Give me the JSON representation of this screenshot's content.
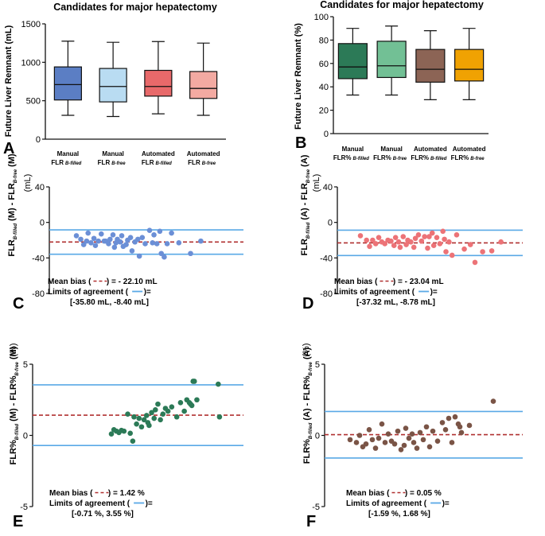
{
  "chart_data": [
    {
      "panel": "A",
      "type": "boxplot",
      "title": "Candidates for major hepatectomy",
      "ylabel": "Future Liver Remnant (mL)",
      "ylim": [
        0,
        1500
      ],
      "yticks": [
        0,
        500,
        1000,
        1500
      ],
      "categories": [
        {
          "main": "Manual",
          "line2": "FLR",
          "sub": "B-filled"
        },
        {
          "main": "Manual",
          "line2": "FLR",
          "sub": "B-free"
        },
        {
          "main": "Automated",
          "line2": "FLR",
          "sub": "B-filled"
        },
        {
          "main": "Automated",
          "line2": "FLR",
          "sub": "B-free"
        }
      ],
      "boxes": [
        {
          "min": 310,
          "q1": 510,
          "median": 710,
          "q3": 940,
          "max": 1275,
          "color": "#5b7ec4"
        },
        {
          "min": 295,
          "q1": 485,
          "median": 685,
          "q3": 920,
          "max": 1260,
          "color": "#b9dcf2"
        },
        {
          "min": 330,
          "q1": 560,
          "median": 685,
          "q3": 895,
          "max": 1270,
          "color": "#e8696a"
        },
        {
          "min": 310,
          "q1": 530,
          "median": 660,
          "q3": 880,
          "max": 1250,
          "color": "#f3aaa2"
        }
      ]
    },
    {
      "panel": "B",
      "type": "boxplot",
      "title": "Candidates for major hepatectomy",
      "ylabel": "Future Liver Remnant (%)",
      "ylim": [
        0,
        100
      ],
      "yticks": [
        0,
        20,
        40,
        60,
        80,
        100
      ],
      "categories": [
        {
          "main": "Manual",
          "line2": "FLR%",
          "sub": "B-filled"
        },
        {
          "main": "Manual",
          "line2": "FLR%",
          "sub": "B-free"
        },
        {
          "main": "Automated",
          "line2": "FLR%",
          "sub": "B-filled"
        },
        {
          "main": "Automated",
          "line2": "FLR%",
          "sub": "B-free"
        }
      ],
      "boxes": [
        {
          "min": 33,
          "q1": 47,
          "median": 57,
          "q3": 77,
          "max": 90,
          "color": "#2c7a57"
        },
        {
          "min": 33,
          "q1": 48,
          "median": 58,
          "q3": 79,
          "max": 92,
          "color": "#72c095"
        },
        {
          "min": 29,
          "q1": 44,
          "median": 55,
          "q3": 72,
          "max": 88,
          "color": "#8c6455"
        },
        {
          "min": 29,
          "q1": 45,
          "median": 55,
          "q3": 72,
          "max": 90,
          "color": "#f0a202"
        }
      ]
    },
    {
      "panel": "C",
      "type": "scatter",
      "ylabel_prefix": "FLR",
      "ylabel_sub1": "B-filled",
      "ylabel_mid": " (M) - FLR",
      "ylabel_sub2": "B-free",
      "ylabel_suffix": " (M)",
      "unit": "(mL)",
      "ylim": [
        -80,
        40
      ],
      "yticks": [
        40,
        0,
        -40,
        -80
      ],
      "mean_bias": -22.1,
      "loa": [
        -35.8,
        -8.4
      ],
      "point_color": "#6b8fd6",
      "points": [
        [
          0.0,
          -15
        ],
        [
          0.03,
          -19
        ],
        [
          0.05,
          -25
        ],
        [
          0.07,
          -21
        ],
        [
          0.08,
          -12
        ],
        [
          0.1,
          -23
        ],
        [
          0.12,
          -18
        ],
        [
          0.13,
          -26
        ],
        [
          0.15,
          -21
        ],
        [
          0.17,
          -13
        ],
        [
          0.19,
          -21
        ],
        [
          0.2,
          -21
        ],
        [
          0.22,
          -24
        ],
        [
          0.23,
          -19
        ],
        [
          0.25,
          -14
        ],
        [
          0.26,
          -28
        ],
        [
          0.27,
          -23
        ],
        [
          0.28,
          -19
        ],
        [
          0.3,
          -22
        ],
        [
          0.31,
          -15
        ],
        [
          0.32,
          -27
        ],
        [
          0.34,
          -25
        ],
        [
          0.35,
          -20
        ],
        [
          0.37,
          -17
        ],
        [
          0.38,
          -32
        ],
        [
          0.4,
          -22
        ],
        [
          0.42,
          -19
        ],
        [
          0.43,
          -38
        ],
        [
          0.45,
          -17
        ],
        [
          0.47,
          -24
        ],
        [
          0.5,
          -9
        ],
        [
          0.52,
          -23
        ],
        [
          0.53,
          -14
        ],
        [
          0.55,
          -24
        ],
        [
          0.57,
          -10
        ],
        [
          0.58,
          -35
        ],
        [
          0.6,
          -39
        ],
        [
          0.62,
          -24
        ],
        [
          0.65,
          -12
        ],
        [
          0.7,
          -23
        ],
        [
          0.78,
          -35
        ],
        [
          0.85,
          -21
        ]
      ],
      "legend_mean_pre": "Mean bias (",
      "legend_mean_post": ") = - 22.10 mL",
      "legend_loa_pre": "Limits of agreement (",
      "legend_loa_post": ")=",
      "legend_range": "[-35.80 mL, -8.40 mL]"
    },
    {
      "panel": "D",
      "type": "scatter",
      "ylabel_prefix": "FLR",
      "ylabel_sub1": "B-filled",
      "ylabel_mid": " (A) - FLR",
      "ylabel_sub2": "B-free",
      "ylabel_suffix": " (A)",
      "unit": "(mL)",
      "ylim": [
        -80,
        40
      ],
      "yticks": [
        40,
        0,
        -40,
        -80
      ],
      "mean_bias": -23.04,
      "loa": [
        -37.32,
        -8.78
      ],
      "point_color": "#ec7377",
      "points": [
        [
          0.0,
          -15
        ],
        [
          0.04,
          -20
        ],
        [
          0.06,
          -27
        ],
        [
          0.08,
          -20
        ],
        [
          0.1,
          -24
        ],
        [
          0.12,
          -17
        ],
        [
          0.14,
          -22
        ],
        [
          0.16,
          -24
        ],
        [
          0.18,
          -20
        ],
        [
          0.2,
          -21
        ],
        [
          0.22,
          -26
        ],
        [
          0.23,
          -17
        ],
        [
          0.25,
          -22
        ],
        [
          0.26,
          -28
        ],
        [
          0.28,
          -16
        ],
        [
          0.3,
          -25
        ],
        [
          0.31,
          -20
        ],
        [
          0.33,
          -22
        ],
        [
          0.35,
          -28
        ],
        [
          0.36,
          -18
        ],
        [
          0.38,
          -14
        ],
        [
          0.4,
          -21
        ],
        [
          0.42,
          -16
        ],
        [
          0.44,
          -29
        ],
        [
          0.45,
          -16
        ],
        [
          0.47,
          -12
        ],
        [
          0.48,
          -26
        ],
        [
          0.5,
          -17
        ],
        [
          0.52,
          -24
        ],
        [
          0.54,
          -10
        ],
        [
          0.55,
          -19
        ],
        [
          0.56,
          -33
        ],
        [
          0.58,
          -22
        ],
        [
          0.6,
          -37
        ],
        [
          0.63,
          -14
        ],
        [
          0.68,
          -30
        ],
        [
          0.72,
          -25
        ],
        [
          0.75,
          -45
        ],
        [
          0.8,
          -33
        ],
        [
          0.86,
          -32
        ],
        [
          0.92,
          -22
        ]
      ],
      "legend_mean_pre": "Mean bias (",
      "legend_mean_post": ") = - 23.04 mL",
      "legend_loa_pre": "Limits of agreement (",
      "legend_loa_post": ")=",
      "legend_range": "[-37.32 mL, -8.78 mL]"
    },
    {
      "panel": "E",
      "type": "scatter",
      "ylabel_prefix": "FLR%",
      "ylabel_sub1": "B-filled",
      "ylabel_mid": " (M) - FLR%",
      "ylabel_sub2": "B-free",
      "ylabel_suffix": " (M)",
      "unit": "(%)",
      "ylim": [
        -5,
        5
      ],
      "yticks": [
        5,
        0,
        -5
      ],
      "mean_bias": 1.42,
      "loa": [
        -0.71,
        3.55
      ],
      "point_color": "#2c7a57",
      "points": [
        [
          0.0,
          0.1
        ],
        [
          0.02,
          0.4
        ],
        [
          0.04,
          0.3
        ],
        [
          0.06,
          0.2
        ],
        [
          0.08,
          0.35
        ],
        [
          0.1,
          0.3
        ],
        [
          0.13,
          1.5
        ],
        [
          0.15,
          0.15
        ],
        [
          0.17,
          -0.4
        ],
        [
          0.18,
          1.3
        ],
        [
          0.2,
          0.8
        ],
        [
          0.22,
          1.2
        ],
        [
          0.24,
          0.6
        ],
        [
          0.26,
          1.1
        ],
        [
          0.28,
          1.4
        ],
        [
          0.29,
          0.9
        ],
        [
          0.3,
          0.7
        ],
        [
          0.32,
          1.6
        ],
        [
          0.34,
          1.2
        ],
        [
          0.35,
          1.8
        ],
        [
          0.37,
          2.2
        ],
        [
          0.39,
          1.1
        ],
        [
          0.41,
          1.5
        ],
        [
          0.43,
          1.9
        ],
        [
          0.45,
          1.7
        ],
        [
          0.48,
          2.0
        ],
        [
          0.52,
          1.3
        ],
        [
          0.55,
          2.3
        ],
        [
          0.58,
          1.7
        ],
        [
          0.6,
          2.5
        ],
        [
          0.62,
          2.3
        ],
        [
          0.63,
          2.2
        ],
        [
          0.64,
          2.1
        ],
        [
          0.65,
          3.8
        ],
        [
          0.66,
          3.8
        ],
        [
          0.68,
          2.5
        ],
        [
          0.85,
          3.6
        ],
        [
          0.86,
          1.3
        ]
      ],
      "legend_mean_pre": "Mean bias (",
      "legend_mean_post": ") = 1.42 %",
      "legend_loa_pre": "Limits of agreement (",
      "legend_loa_post": ")=",
      "legend_range": "[-0.71 %, 3.55 %]"
    },
    {
      "panel": "F",
      "type": "scatter",
      "ylabel_prefix": "FLR%",
      "ylabel_sub1": "B-filled",
      "ylabel_mid": " (A) - FLR%",
      "ylabel_sub2": "B-free",
      "ylabel_suffix": " (A)",
      "unit": "(%)",
      "ylim": [
        -5,
        5
      ],
      "yticks": [
        5,
        0,
        -5
      ],
      "mean_bias": 0.05,
      "loa": [
        -1.59,
        1.68
      ],
      "point_color": "#7a5446",
      "points": [
        [
          0.0,
          -0.3
        ],
        [
          0.04,
          -0.5
        ],
        [
          0.06,
          0.0
        ],
        [
          0.08,
          -0.8
        ],
        [
          0.1,
          -0.6
        ],
        [
          0.12,
          0.4
        ],
        [
          0.14,
          -0.3
        ],
        [
          0.16,
          -0.9
        ],
        [
          0.18,
          -0.2
        ],
        [
          0.2,
          0.8
        ],
        [
          0.22,
          -0.5
        ],
        [
          0.24,
          0.1
        ],
        [
          0.26,
          -0.4
        ],
        [
          0.28,
          -0.6
        ],
        [
          0.3,
          0.3
        ],
        [
          0.32,
          -1.0
        ],
        [
          0.34,
          -0.7
        ],
        [
          0.35,
          0.5
        ],
        [
          0.37,
          -0.2
        ],
        [
          0.39,
          0.1
        ],
        [
          0.4,
          -0.5
        ],
        [
          0.42,
          -0.9
        ],
        [
          0.44,
          0.2
        ],
        [
          0.46,
          -0.3
        ],
        [
          0.48,
          0.6
        ],
        [
          0.5,
          -0.8
        ],
        [
          0.52,
          0.3
        ],
        [
          0.55,
          -0.4
        ],
        [
          0.58,
          0.9
        ],
        [
          0.6,
          0.4
        ],
        [
          0.62,
          1.2
        ],
        [
          0.64,
          -0.5
        ],
        [
          0.66,
          1.3
        ],
        [
          0.68,
          0.8
        ],
        [
          0.69,
          0.6
        ],
        [
          0.7,
          0.2
        ],
        [
          0.75,
          0.7
        ],
        [
          0.9,
          2.4
        ]
      ],
      "legend_mean_pre": "Mean bias (",
      "legend_mean_post": ") = 0.05 %",
      "legend_loa_pre": "Limits of agreement (",
      "legend_loa_post": ")=",
      "legend_range": "[-1.59 %, 1.68 %]"
    }
  ],
  "colors": {
    "axis": "#111111",
    "loa_line": "#5aa9e6",
    "mean_line": "#b03030"
  }
}
